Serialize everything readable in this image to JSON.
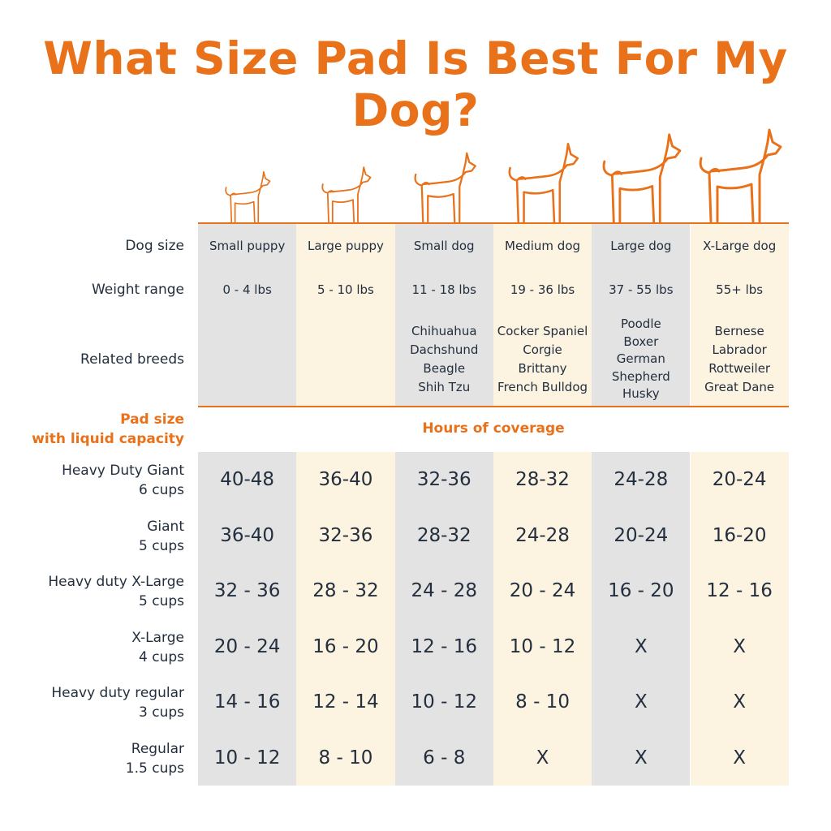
{
  "title": "What Size Pad Is Best For My Dog?",
  "row_labels": {
    "dog_size": "Dog size",
    "weight_range": "Weight range",
    "related_breeds": "Related breeds"
  },
  "pad_header": {
    "line1": "Pad size",
    "line2": "with liquid capacity",
    "hours": "Hours of coverage"
  },
  "colors": {
    "accent": "#e8711a",
    "gray": "#e3e3e3",
    "cream": "#fdf3e1",
    "text": "#232f3e"
  },
  "columns": [
    {
      "size": "Small puppy",
      "weight": "0 - 4 lbs",
      "breeds": [],
      "icon": "small-puppy-icon"
    },
    {
      "size": "Large puppy",
      "weight": "5 - 10 lbs",
      "breeds": [],
      "icon": "large-puppy-icon"
    },
    {
      "size": "Small dog",
      "weight": "11 - 18 lbs",
      "breeds": [
        "Chihuahua",
        "Dachshund",
        "Beagle",
        "Shih Tzu"
      ],
      "icon": "small-dog-icon"
    },
    {
      "size": "Medium dog",
      "weight": "19 - 36 lbs",
      "breeds": [
        "Cocker Spaniel",
        "Corgie",
        "Brittany",
        "French Bulldog"
      ],
      "icon": "medium-dog-icon"
    },
    {
      "size": "Large dog",
      "weight": "37 - 55 lbs",
      "breeds": [
        "Poodle",
        "Boxer",
        "German",
        "Shepherd",
        "Husky"
      ],
      "icon": "large-dog-icon"
    },
    {
      "size": "X-Large dog",
      "weight": "55+ lbs",
      "breeds": [
        "Bernese",
        "Labrador",
        "Rottweiler",
        "Great Dane"
      ],
      "icon": "xlarge-dog-icon"
    }
  ],
  "pads": [
    {
      "name": "Heavy Duty Giant",
      "capacity": "6 cups",
      "hours": [
        "40-48",
        "36-40",
        "32-36",
        "28-32",
        "24-28",
        "20-24"
      ]
    },
    {
      "name": "Giant",
      "capacity": "5 cups",
      "hours": [
        "36-40",
        "32-36",
        "28-32",
        "24-28",
        "20-24",
        "16-20"
      ]
    },
    {
      "name": "Heavy duty X-Large",
      "capacity": "5 cups",
      "hours": [
        "32 - 36",
        "28 - 32",
        "24 - 28",
        "20 - 24",
        "16 - 20",
        "12 - 16"
      ]
    },
    {
      "name": "X-Large",
      "capacity": "4 cups",
      "hours": [
        "20 - 24",
        "16 - 20",
        "12 - 16",
        "10 - 12",
        "X",
        "X"
      ]
    },
    {
      "name": "Heavy duty regular",
      "capacity": "3 cups",
      "hours": [
        "14 - 16",
        "12 - 14",
        "10 - 12",
        "8 - 10",
        "X",
        "X"
      ]
    },
    {
      "name": "Regular",
      "capacity": "1.5 cups",
      "hours": [
        "10 - 12",
        "8 - 10",
        "6 - 8",
        "X",
        "X",
        "X"
      ]
    }
  ]
}
